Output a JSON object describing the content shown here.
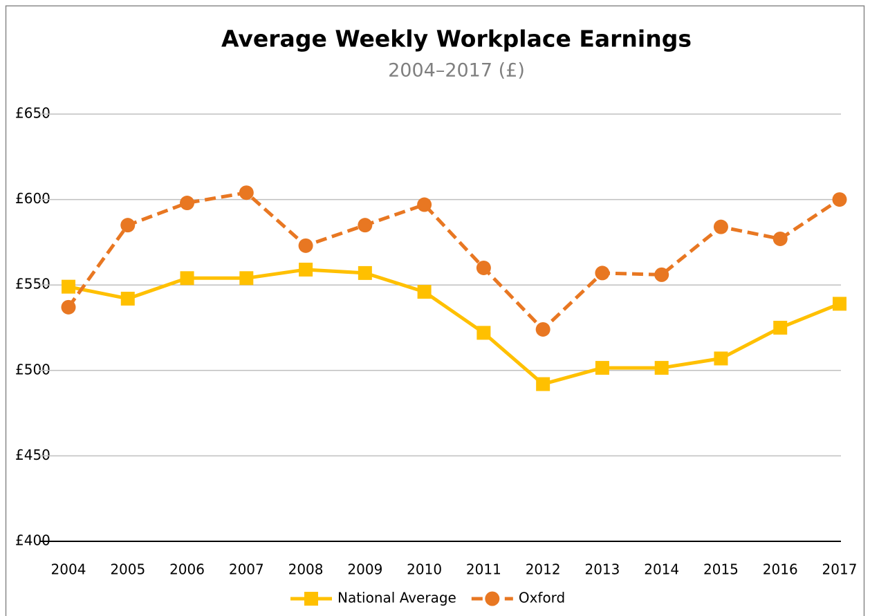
{
  "chart_data": {
    "type": "line",
    "title": "Average Weekly Workplace Earnings",
    "subtitle": "2004–2017 (£)",
    "categories": [
      "2004",
      "2005",
      "2006",
      "2007",
      "2008",
      "2009",
      "2010",
      "2011",
      "2012",
      "2013",
      "2014",
      "2015",
      "2016",
      "2017"
    ],
    "series": [
      {
        "name": "National Average",
        "color": "#FFC000",
        "dashed": false,
        "marker": "square",
        "values": [
          549,
          542,
          554,
          554,
          559,
          557,
          546,
          522,
          492,
          501.5,
          501.5,
          507,
          525,
          539
        ]
      },
      {
        "name": "Oxford",
        "color": "#E87722",
        "dashed": true,
        "marker": "circle",
        "values": [
          537,
          585,
          598,
          604,
          573,
          585,
          597,
          560,
          524,
          557,
          556,
          584,
          577,
          600
        ]
      }
    ],
    "ylim": [
      400,
      650
    ],
    "yticks": [
      {
        "value": 400,
        "label": "£400"
      },
      {
        "value": 450,
        "label": "£450"
      },
      {
        "value": 500,
        "label": "£500"
      },
      {
        "value": 550,
        "label": "£550"
      },
      {
        "value": 600,
        "label": "£600"
      },
      {
        "value": 650,
        "label": "£650"
      }
    ],
    "grid": true,
    "legend": "bottom"
  }
}
